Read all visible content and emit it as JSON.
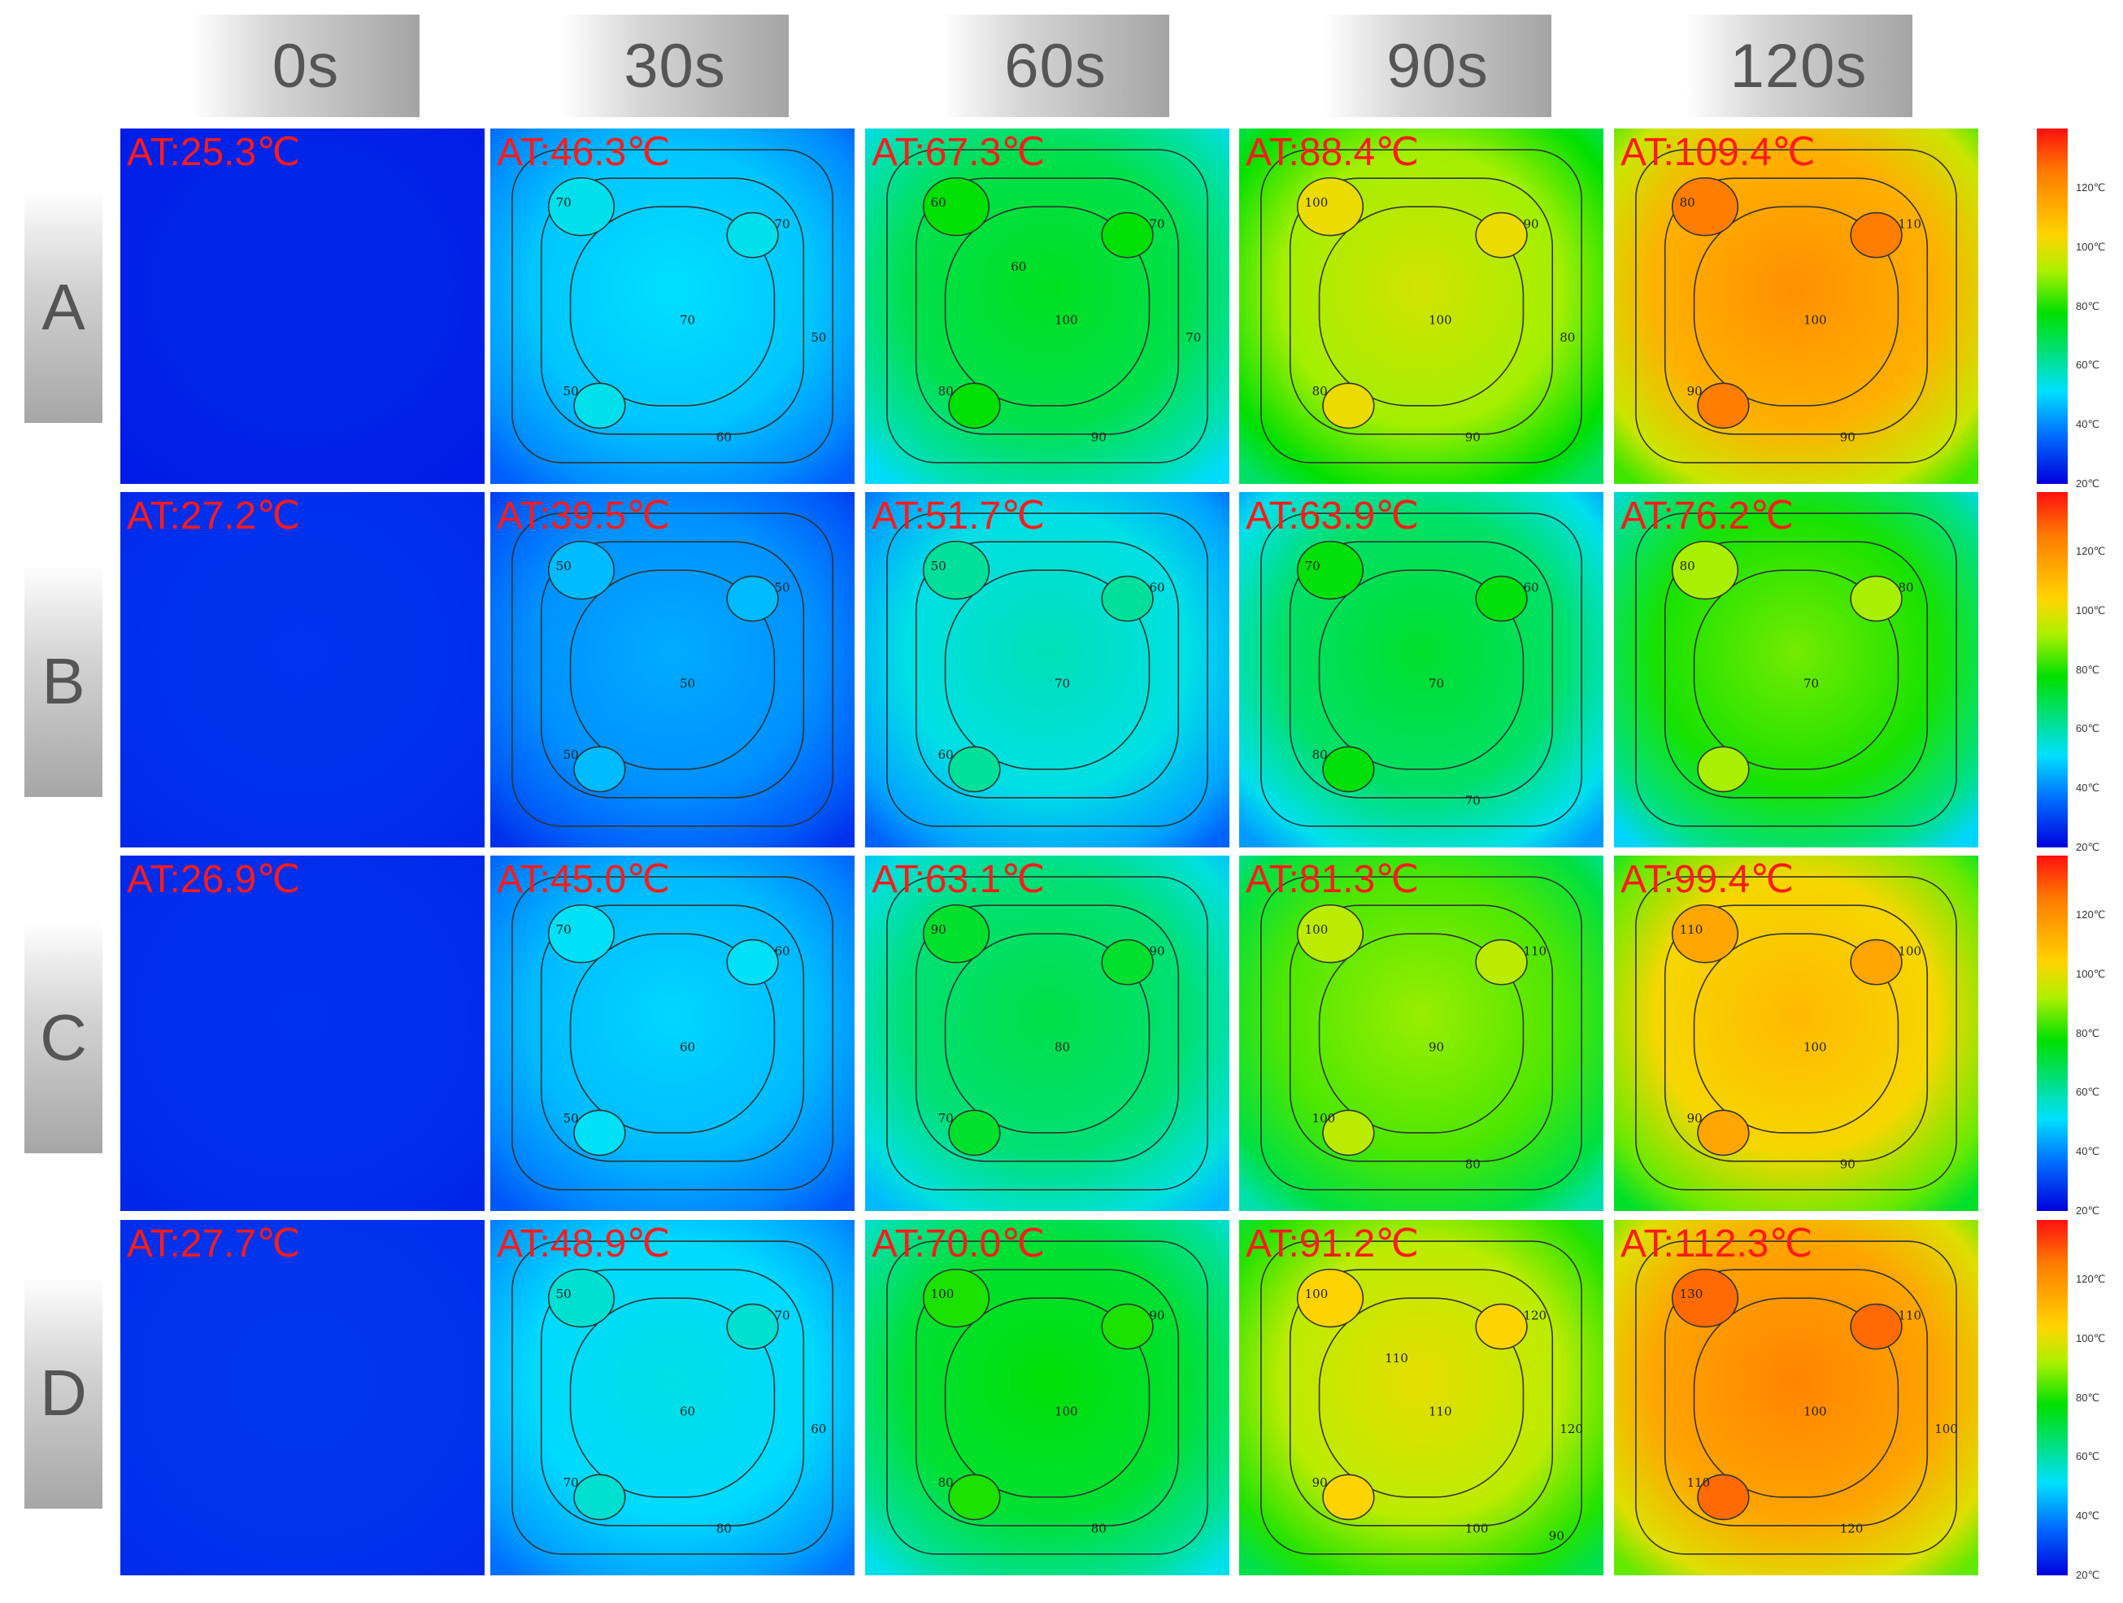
{
  "chart_data": {
    "type": "heatmap",
    "title": "",
    "columns": [
      "0s",
      "30s",
      "60s",
      "90s",
      "120s"
    ],
    "rows": [
      "A",
      "B",
      "C",
      "D"
    ],
    "average_temperature_labels": [
      [
        "AT:25.3℃",
        "AT:46.3℃",
        "AT:67.3℃",
        "AT:88.4℃",
        "AT:109.4℃"
      ],
      [
        "AT:27.2℃",
        "AT:39.5℃",
        "AT:51.7℃",
        "AT:63.9℃",
        "AT:76.2℃"
      ],
      [
        "AT:26.9℃",
        "AT:45.0℃",
        "AT:63.1℃",
        "AT:81.3℃",
        "AT:99.4℃"
      ],
      [
        "AT:27.7℃",
        "AT:48.9℃",
        "AT:70.0℃",
        "AT:91.2℃",
        "AT:112.3℃"
      ]
    ],
    "average_temperatures": [
      [
        25.3,
        46.3,
        67.3,
        88.4,
        109.4
      ],
      [
        27.2,
        39.5,
        51.7,
        63.9,
        76.2
      ],
      [
        26.9,
        45.0,
        63.1,
        81.3,
        99.4
      ],
      [
        27.7,
        48.9,
        70.0,
        91.2,
        112.3
      ]
    ],
    "colorbar": {
      "min": 20,
      "max": 140,
      "ticks": [
        "20℃",
        "40℃",
        "60℃",
        "80℃",
        "100℃",
        "120℃"
      ]
    },
    "contour_labels": [
      [
        [],
        [
          "70",
          "70",
          "70",
          "50",
          "60",
          "50"
        ],
        [
          "60",
          "70",
          "100",
          "80",
          "90",
          "70",
          "60"
        ],
        [
          "100",
          "90",
          "100",
          "80",
          "90",
          "80"
        ],
        [
          "80",
          "110",
          "100",
          "90",
          "90"
        ]
      ],
      [
        [],
        [
          "50",
          "50",
          "50",
          "50"
        ],
        [
          "50",
          "60",
          "70",
          "60"
        ],
        [
          "70",
          "60",
          "70",
          "80",
          "70"
        ],
        [
          "80",
          "80",
          "70"
        ]
      ],
      [
        [],
        [
          "70",
          "60",
          "60",
          "50"
        ],
        [
          "90",
          "90",
          "80",
          "70"
        ],
        [
          "100",
          "110",
          "90",
          "100",
          "80"
        ],
        [
          "110",
          "100",
          "100",
          "90",
          "90"
        ]
      ],
      [
        [],
        [
          "50",
          "70",
          "60",
          "70",
          "80",
          "60"
        ],
        [
          "100",
          "90",
          "100",
          "80",
          "80"
        ],
        [
          "100",
          "120",
          "110",
          "90",
          "100",
          "120",
          "110",
          "90"
        ],
        [
          "130",
          "110",
          "100",
          "110",
          "120",
          "100"
        ]
      ]
    ]
  }
}
